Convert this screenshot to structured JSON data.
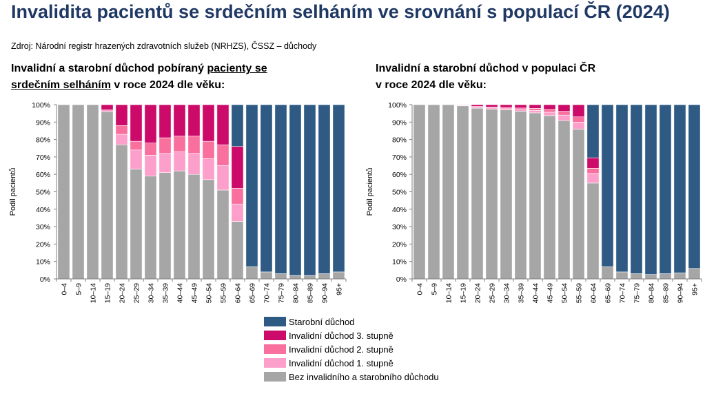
{
  "title": "Invalidita pacientů se srdečním selháním ve srovnání s populací ČR (2024)",
  "source": "Zdroj: Národní registr hrazených zdravotních služeb (NRHZS), ČSSZ – důchody",
  "left_subtitle": {
    "pre": "Invalidní a starobní důchod pobíraný ",
    "ul1": "pacienty se",
    "ul2": "srdečním selháním",
    "post": " v roce 2024 dle věku:"
  },
  "right_subtitle": {
    "line1": "Invalidní a starobní důchod v populaci ČR",
    "line2": "v roce 2024 dle věku:"
  },
  "legend": [
    {
      "label": "Starobní důchod",
      "color": "#2e5a84"
    },
    {
      "label": "Invalidní důchod 3. stupně",
      "color": "#cc0a6a"
    },
    {
      "label": "Invalidní důchod 2. stupně",
      "color": "#f96f9e"
    },
    {
      "label": "Invalidní důchod 1. stupně",
      "color": "#fc9fcb"
    },
    {
      "label": "Bez invalidního a starobního důchodu",
      "color": "#a6a6a6"
    }
  ],
  "chart_data": [
    {
      "type": "bar",
      "stacked": true,
      "ylabel": "Podíl pacientů",
      "ylim": [
        0,
        100
      ],
      "yticks": [
        "0%",
        "10%",
        "20%",
        "30%",
        "40%",
        "50%",
        "60%",
        "70%",
        "80%",
        "90%",
        "100%"
      ],
      "categories": [
        "0–4",
        "5–9",
        "10–14",
        "15–19",
        "20–24",
        "25–29",
        "30–34",
        "35–39",
        "40–44",
        "45–49",
        "50–54",
        "55–59",
        "60–64",
        "65–69",
        "70–74",
        "75–79",
        "80–84",
        "85–89",
        "90–94",
        "95+"
      ],
      "series": [
        {
          "name": "Bez invalidního a starobního důchodu",
          "values": [
            100,
            100,
            100,
            96,
            77,
            63,
            59,
            61,
            62,
            60,
            57,
            51,
            33,
            7,
            4,
            3,
            2,
            2,
            3,
            4
          ]
        },
        {
          "name": "Invalidní důchod 1. stupně",
          "values": [
            0,
            0,
            0,
            1,
            6,
            11,
            12,
            11,
            11,
            12,
            12,
            14,
            10,
            0,
            0,
            0,
            0,
            0,
            0,
            0
          ]
        },
        {
          "name": "Invalidní důchod 2. stupně",
          "values": [
            0,
            0,
            0,
            0,
            5,
            5,
            7,
            9,
            9,
            10,
            10,
            12,
            9,
            0,
            0,
            0,
            0,
            0,
            0,
            0
          ]
        },
        {
          "name": "Invalidní důchod 3. stupně",
          "values": [
            0,
            0,
            0,
            3,
            12,
            21,
            22,
            19,
            18,
            18,
            21,
            23,
            24,
            0,
            0,
            0,
            0,
            0,
            0,
            0
          ]
        },
        {
          "name": "Starobní důchod",
          "values": [
            0,
            0,
            0,
            0,
            0,
            0,
            0,
            0,
            0,
            0,
            0,
            0,
            24,
            93,
            96,
            97,
            98,
            98,
            97,
            96
          ]
        }
      ]
    },
    {
      "type": "bar",
      "stacked": true,
      "ylabel": "Podíl pacientů",
      "ylim": [
        0,
        100
      ],
      "yticks": [
        "0%",
        "10%",
        "20%",
        "30%",
        "40%",
        "50%",
        "60%",
        "70%",
        "80%",
        "90%",
        "100%"
      ],
      "categories": [
        "0–4",
        "5–9",
        "10–14",
        "15–19",
        "20–24",
        "25–29",
        "30–34",
        "35–39",
        "40–44",
        "45–49",
        "50–54",
        "55–59",
        "60–64",
        "65–69",
        "70–74",
        "75–79",
        "80–84",
        "85–89",
        "90–94",
        "95+"
      ],
      "series": [
        {
          "name": "Bez invalidního a starobního důchodu",
          "values": [
            100,
            100,
            100,
            99.3,
            98,
            97.5,
            97,
            96.3,
            95.3,
            93.7,
            90.8,
            86,
            55,
            7,
            4,
            3,
            2.5,
            3,
            3.5,
            6
          ]
        },
        {
          "name": "Invalidní důchod 1. stupně",
          "values": [
            0,
            0,
            0,
            0.2,
            0.5,
            0.6,
            0.7,
            0.9,
            1.4,
            2,
            3.2,
            4,
            5.5,
            0,
            0,
            0,
            0,
            0,
            0,
            0
          ]
        },
        {
          "name": "Invalidní důchod 2. stupně",
          "values": [
            0,
            0,
            0,
            0.2,
            0.5,
            0.6,
            0.7,
            0.9,
            1.2,
            1.6,
            2.2,
            3,
            3,
            0,
            0,
            0,
            0,
            0,
            0,
            0
          ]
        },
        {
          "name": "Invalidní důchod 3. stupně",
          "values": [
            0,
            0,
            0,
            0.3,
            1,
            1.3,
            1.6,
            1.9,
            2.1,
            2.7,
            3.8,
            7,
            6,
            0,
            0,
            0,
            0,
            0,
            0,
            0
          ]
        },
        {
          "name": "Starobní důchod",
          "values": [
            0,
            0,
            0,
            0,
            0,
            0,
            0,
            0,
            0,
            0,
            0,
            0,
            30.5,
            93,
            96,
            97,
            97.5,
            97,
            96.5,
            94
          ]
        }
      ]
    }
  ]
}
